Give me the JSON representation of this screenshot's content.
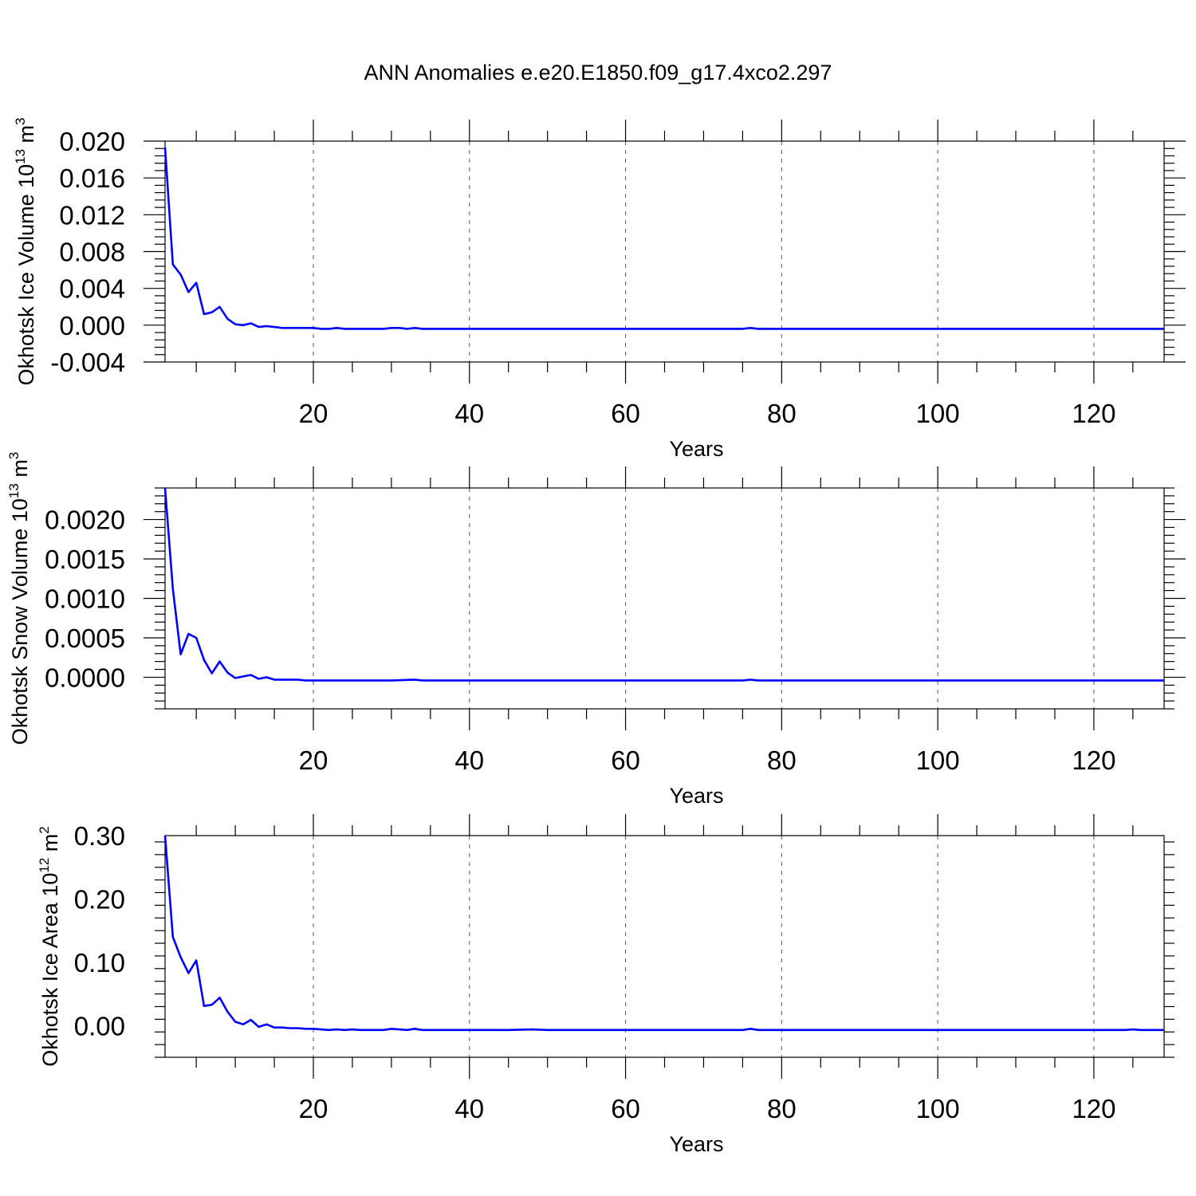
{
  "title": "ANN Anomalies e.e20.E1850.f09_g17.4xco2.297",
  "chart_data": [
    {
      "type": "line",
      "ylabel": {
        "text": "Okhotsk Ice Volume 10",
        "sup": "13",
        "unit": " m",
        "unit_sup": "3"
      },
      "xlabel": "Years",
      "xlim": [
        1,
        129
      ],
      "ylim": [
        -0.004,
        0.02
      ],
      "xticks": [
        20,
        40,
        60,
        80,
        100,
        120
      ],
      "xtick_labels": [
        "20",
        "40",
        "60",
        "80",
        "100",
        "120"
      ],
      "yticks": [
        -0.004,
        0.0,
        0.004,
        0.008,
        0.012,
        0.016,
        0.02
      ],
      "ytick_labels": [
        "-0.004",
        "0.000",
        "0.004",
        "0.008",
        "0.012",
        "0.016",
        "0.020"
      ],
      "grid": "x-dashed",
      "color": "#0000ff",
      "x": [
        1,
        2,
        3,
        4,
        5,
        6,
        7,
        8,
        9,
        10,
        11,
        12,
        13,
        14,
        15,
        16,
        17,
        18,
        19,
        20,
        21,
        22,
        23,
        24,
        25,
        26,
        27,
        28,
        29,
        30,
        31,
        32,
        33,
        34,
        35,
        40,
        45,
        50,
        55,
        60,
        65,
        70,
        75,
        76,
        77,
        80,
        85,
        90,
        95,
        100,
        105,
        110,
        115,
        120,
        125,
        129
      ],
      "values": [
        0.0193,
        0.0066,
        0.0055,
        0.0036,
        0.0046,
        0.0012,
        0.0014,
        0.002,
        0.0007,
        0.0001,
        0.0,
        0.0002,
        -0.0002,
        -0.0001,
        -0.0002,
        -0.0003,
        -0.0003,
        -0.0003,
        -0.0003,
        -0.0003,
        -0.0004,
        -0.0004,
        -0.0003,
        -0.0004,
        -0.0004,
        -0.0004,
        -0.0004,
        -0.0004,
        -0.0004,
        -0.0003,
        -0.0003,
        -0.0004,
        -0.0003,
        -0.0004,
        -0.0004,
        -0.0004,
        -0.0004,
        -0.0004,
        -0.0004,
        -0.0004,
        -0.0004,
        -0.0004,
        -0.0004,
        -0.0003,
        -0.0004,
        -0.0004,
        -0.0004,
        -0.0004,
        -0.0004,
        -0.0004,
        -0.0004,
        -0.0004,
        -0.0004,
        -0.0004,
        -0.0004,
        -0.0004
      ]
    },
    {
      "type": "line",
      "ylabel": {
        "text": "Okhotsk Snow Volume 10",
        "sup": "13",
        "unit": " m",
        "unit_sup": "3"
      },
      "xlabel": "Years",
      "xlim": [
        1,
        129
      ],
      "ylim": [
        -0.0004,
        0.0024
      ],
      "xticks": [
        20,
        40,
        60,
        80,
        100,
        120
      ],
      "xtick_labels": [
        "20",
        "40",
        "60",
        "80",
        "100",
        "120"
      ],
      "yticks": [
        0.0,
        0.0005,
        0.001,
        0.0015,
        0.002
      ],
      "ytick_labels": [
        "0.0000",
        "0.0005",
        "0.0010",
        "0.0015",
        "0.0020"
      ],
      "grid": "x-dashed",
      "color": "#0000ff",
      "x": [
        1,
        2,
        3,
        4,
        5,
        6,
        7,
        8,
        9,
        10,
        11,
        12,
        13,
        14,
        15,
        16,
        17,
        18,
        19,
        20,
        21,
        22,
        23,
        24,
        25,
        30,
        33,
        34,
        40,
        50,
        60,
        70,
        75,
        76,
        77,
        80,
        90,
        100,
        110,
        120,
        129
      ],
      "values": [
        0.0024,
        0.00112,
        0.00029,
        0.00055,
        0.0005,
        0.00022,
        5e-05,
        0.0002,
        6e-05,
        -1e-05,
        1e-05,
        3e-05,
        -2e-05,
        0.0,
        -3e-05,
        -3e-05,
        -3e-05,
        -3e-05,
        -4e-05,
        -4e-05,
        -4e-05,
        -4e-05,
        -4e-05,
        -4e-05,
        -4e-05,
        -4e-05,
        -3e-05,
        -4e-05,
        -4e-05,
        -4e-05,
        -4e-05,
        -4e-05,
        -4e-05,
        -3e-05,
        -4e-05,
        -4e-05,
        -4e-05,
        -4e-05,
        -4e-05,
        -4e-05,
        -4e-05
      ]
    },
    {
      "type": "line",
      "ylabel": {
        "text": "Okhotsk Ice Area 10",
        "sup": "12",
        "unit": " m",
        "unit_sup": "2"
      },
      "xlabel": "Years",
      "xlim": [
        1,
        129
      ],
      "ylim": [
        -0.05,
        0.3
      ],
      "xticks": [
        20,
        40,
        60,
        80,
        100,
        120
      ],
      "xtick_labels": [
        "20",
        "40",
        "60",
        "80",
        "100",
        "120"
      ],
      "yticks": [
        0.0,
        0.1,
        0.2,
        0.3
      ],
      "ytick_labels": [
        "0.00",
        "0.10",
        "0.20",
        "0.30"
      ],
      "grid": "x-dashed",
      "color": "#0000ff",
      "x": [
        1,
        2,
        3,
        4,
        5,
        6,
        7,
        8,
        9,
        10,
        11,
        12,
        13,
        14,
        15,
        16,
        17,
        18,
        19,
        20,
        21,
        22,
        23,
        24,
        25,
        26,
        27,
        28,
        29,
        30,
        31,
        32,
        33,
        34,
        35,
        40,
        45,
        48,
        50,
        55,
        60,
        65,
        70,
        75,
        76,
        77,
        80,
        85,
        90,
        95,
        100,
        105,
        110,
        115,
        120,
        124,
        125,
        126,
        129
      ],
      "values": [
        0.3,
        0.14,
        0.108,
        0.083,
        0.103,
        0.031,
        0.033,
        0.044,
        0.022,
        0.006,
        0.002,
        0.009,
        -0.002,
        0.002,
        -0.003,
        -0.003,
        -0.004,
        -0.004,
        -0.005,
        -0.005,
        -0.006,
        -0.007,
        -0.006,
        -0.007,
        -0.006,
        -0.007,
        -0.007,
        -0.007,
        -0.007,
        -0.005,
        -0.006,
        -0.007,
        -0.005,
        -0.007,
        -0.007,
        -0.007,
        -0.007,
        -0.006,
        -0.007,
        -0.007,
        -0.007,
        -0.007,
        -0.007,
        -0.007,
        -0.005,
        -0.007,
        -0.007,
        -0.007,
        -0.007,
        -0.007,
        -0.007,
        -0.007,
        -0.007,
        -0.007,
        -0.007,
        -0.007,
        -0.006,
        -0.007,
        -0.007
      ]
    }
  ]
}
